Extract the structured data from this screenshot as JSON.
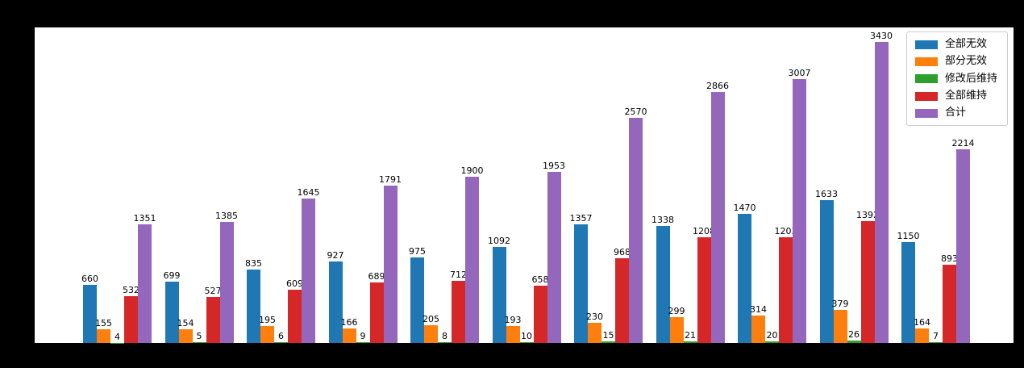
{
  "figure": {
    "background_color": "#000000",
    "plot_background_color": "#ffffff",
    "axis_tick_labels_visible": false
  },
  "legend": {
    "position": "upper right",
    "items": [
      {
        "label": "全部无效",
        "color": "#1f77b4"
      },
      {
        "label": "部分无效",
        "color": "#ff7f0e"
      },
      {
        "label": "修改后维持",
        "color": "#2ca02c"
      },
      {
        "label": "全部维持",
        "color": "#d62728"
      },
      {
        "label": "合计",
        "color": "#9467bd"
      }
    ]
  },
  "chart_data": {
    "type": "bar",
    "title": "",
    "xlabel": "",
    "ylabel": "",
    "ylim": [
      0,
      3600
    ],
    "grid": false,
    "bar_value_labels": true,
    "legend_position": "upper right",
    "group_count": 11,
    "categories": [
      "",
      "",
      "",
      "",
      "",
      "",
      "",
      "",
      "",
      "",
      ""
    ],
    "series": [
      {
        "name": "全部无效",
        "color": "#1f77b4",
        "values": [
          660,
          699,
          835,
          927,
          975,
          1092,
          1357,
          1338,
          1470,
          1633,
          1150
        ]
      },
      {
        "name": "部分无效",
        "color": "#ff7f0e",
        "values": [
          155,
          154,
          195,
          166,
          205,
          193,
          230,
          299,
          314,
          379,
          164
        ]
      },
      {
        "name": "修改后维持",
        "color": "#2ca02c",
        "values": [
          4,
          5,
          6,
          9,
          8,
          10,
          15,
          21,
          20,
          26,
          7
        ]
      },
      {
        "name": "全部维持",
        "color": "#d62728",
        "values": [
          532,
          527,
          609,
          689,
          712,
          658,
          968,
          1208,
          1203,
          1392,
          893
        ]
      },
      {
        "name": "合计",
        "color": "#9467bd",
        "values": [
          1351,
          1385,
          1645,
          1791,
          1900,
          1953,
          2570,
          2866,
          3007,
          3430,
          2214
        ]
      }
    ]
  }
}
